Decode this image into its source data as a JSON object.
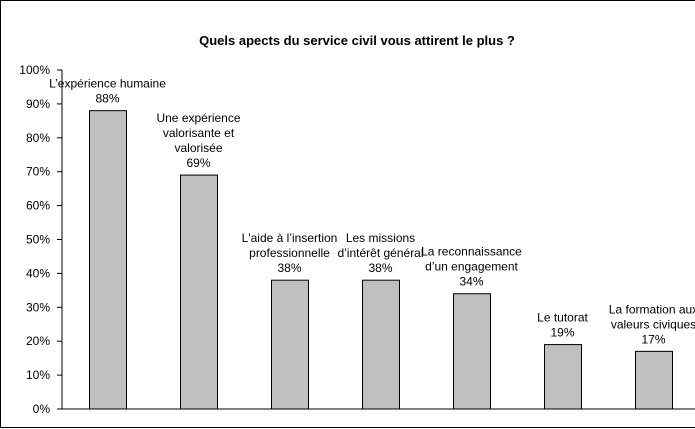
{
  "chart_data": {
    "type": "bar",
    "title": "Quels apects du service civil vous attirent le plus ?",
    "categories": [
      "L’expérience humaine",
      "Une expérience\nvalorisante et\nvalorisée",
      "L'aide à l’insertion\nprofessionnelle",
      "Les missions\nd’intérêt général",
      "La reconnaissance\nd’un engagement",
      "Le tutorat",
      "La formation aux\nvaleurs civiques"
    ],
    "values": [
      88,
      69,
      38,
      38,
      34,
      19,
      17
    ],
    "value_labels": [
      "88%",
      "69%",
      "38%",
      "38%",
      "34%",
      "19%",
      "17%"
    ],
    "color": "#c0c0c0",
    "ylim": [
      0,
      100
    ],
    "yticks": [
      {
        "value": 0,
        "label": "0%"
      },
      {
        "value": 10,
        "label": "10%"
      },
      {
        "value": 20,
        "label": "20%"
      },
      {
        "value": 30,
        "label": "30%"
      },
      {
        "value": 40,
        "label": "40%"
      },
      {
        "value": 50,
        "label": "50%"
      },
      {
        "value": 60,
        "label": "60%"
      },
      {
        "value": 70,
        "label": "70%"
      },
      {
        "value": 80,
        "label": "80%"
      },
      {
        "value": 90,
        "label": "90%"
      },
      {
        "value": 100,
        "label": "100%"
      }
    ],
    "grid": false
  }
}
